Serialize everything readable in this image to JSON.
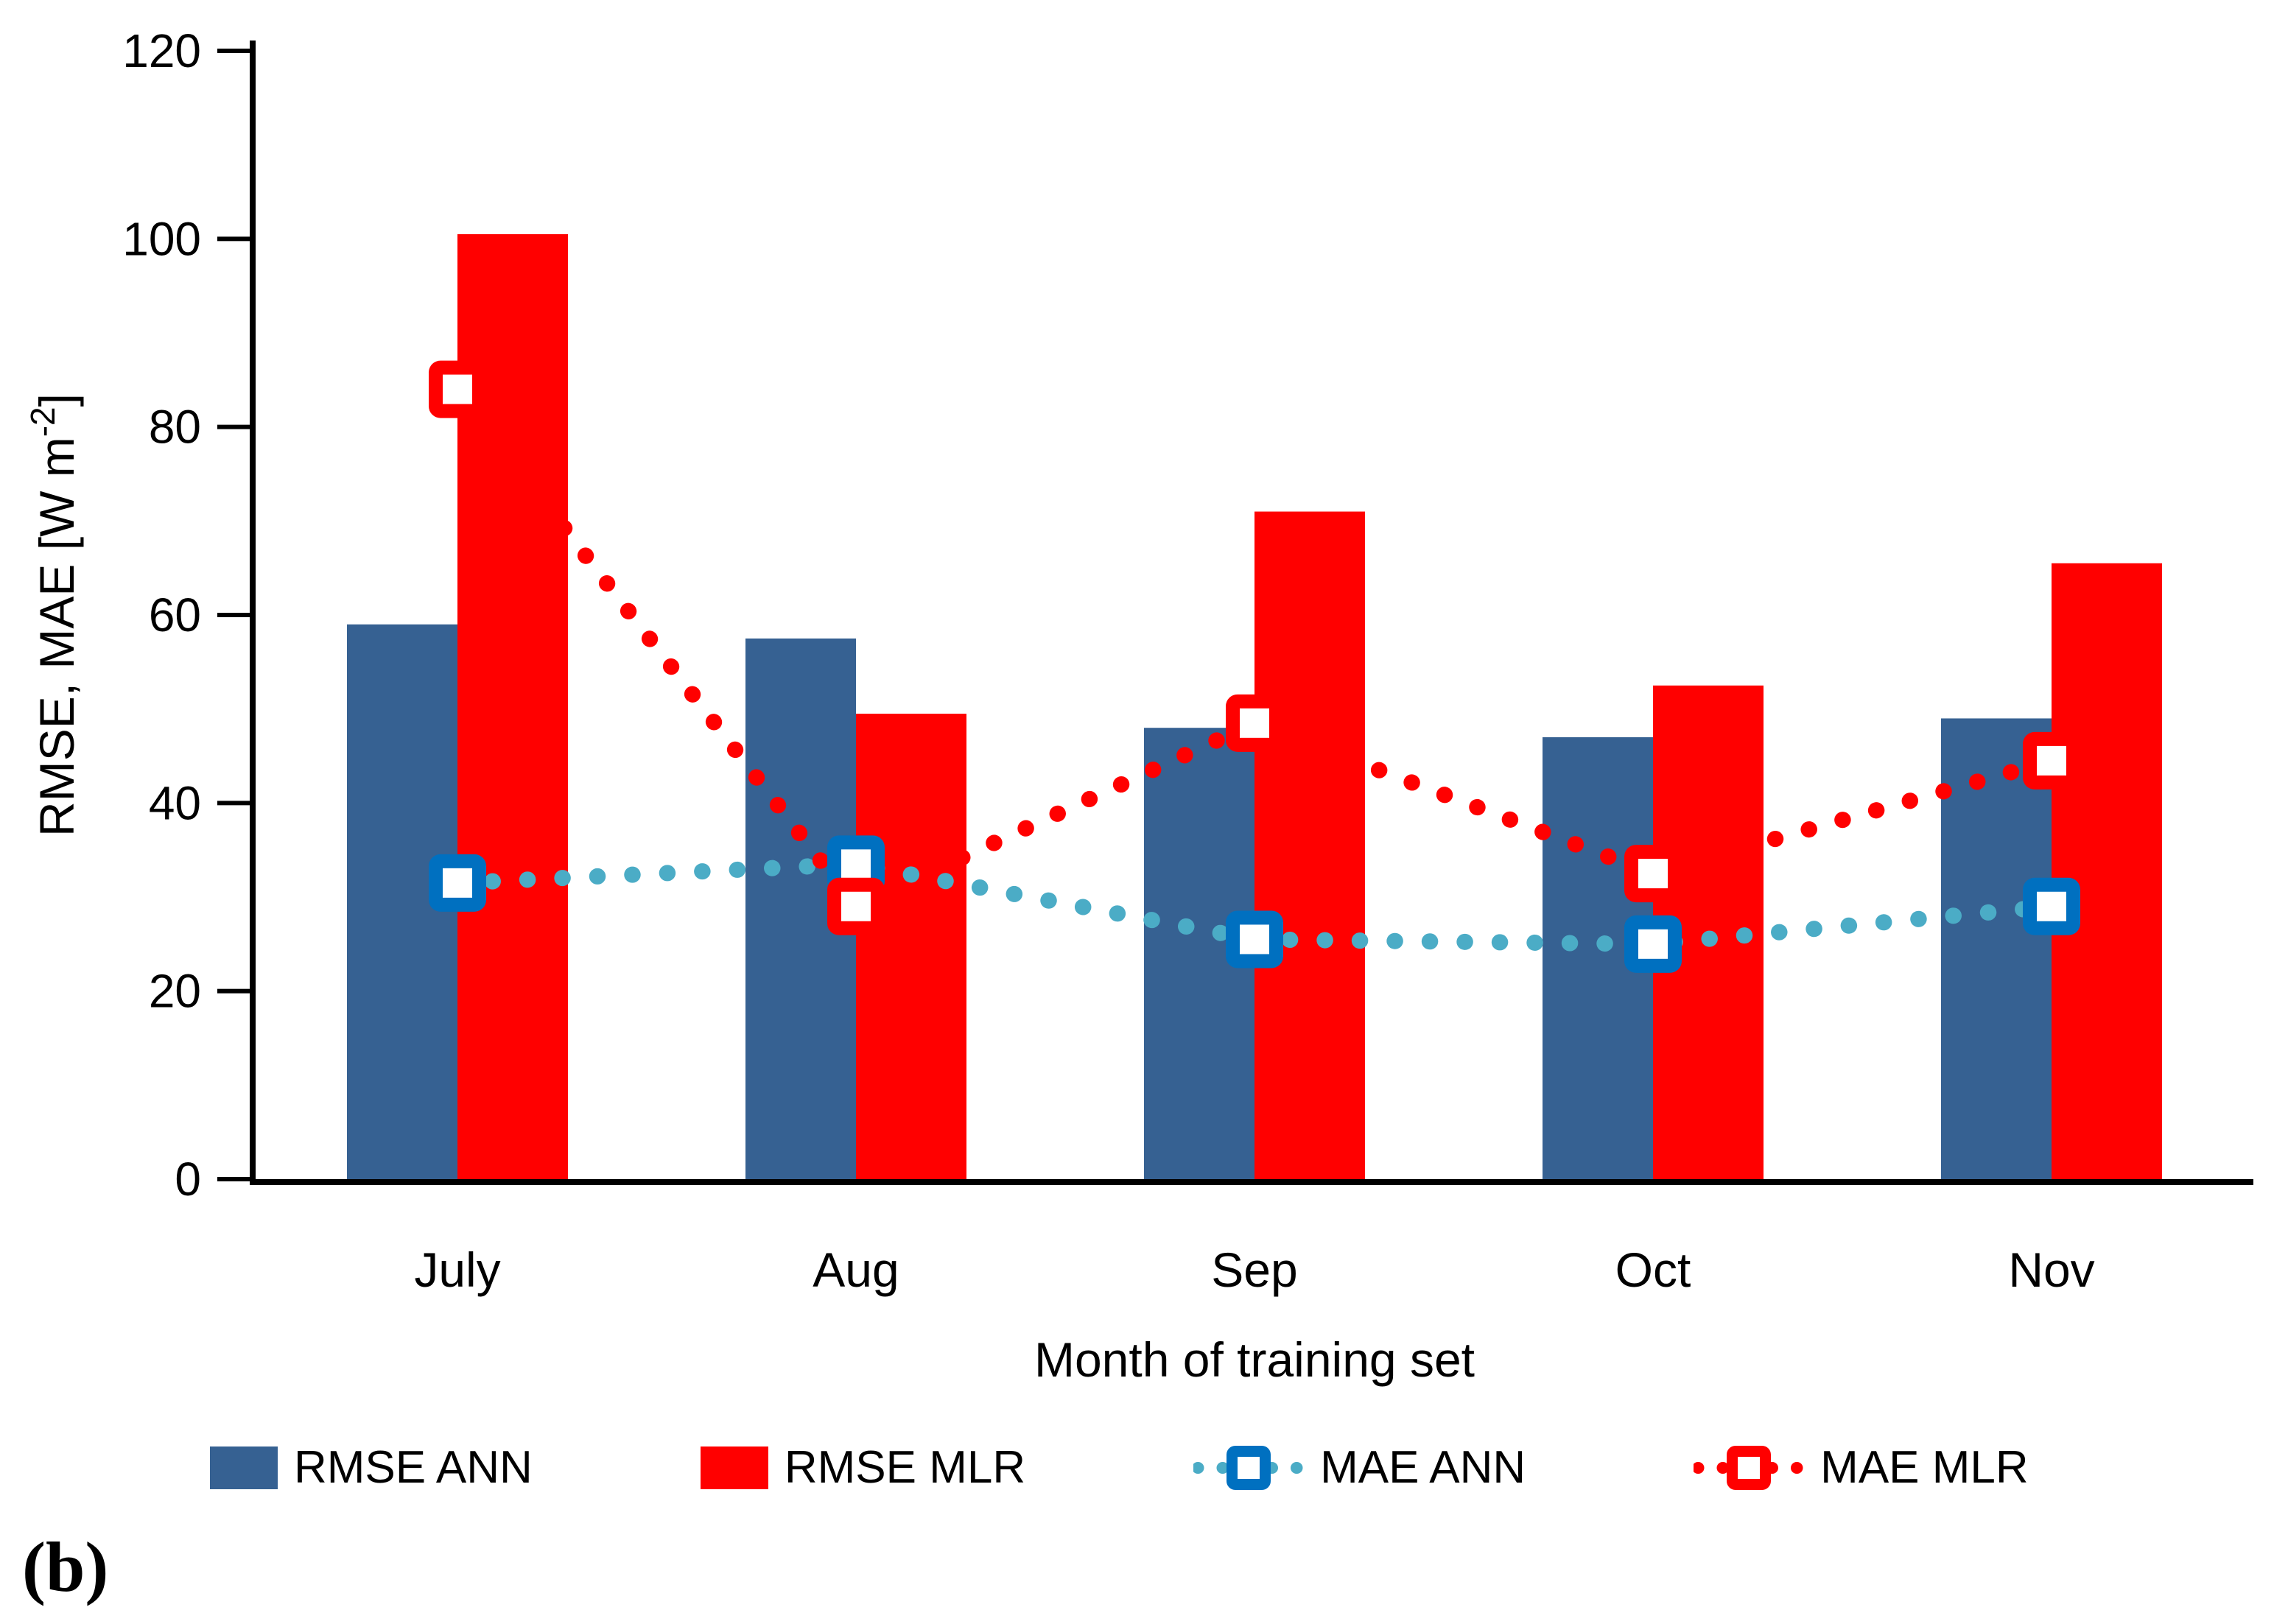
{
  "figure_label": "(b)",
  "chart_data": {
    "type": "combo-bar-line",
    "categories": [
      "July",
      "Aug",
      "Sep",
      "Oct",
      "Nov"
    ],
    "series": [
      {
        "name": "RMSE ANN",
        "type": "bar",
        "color": "#366192",
        "values": [
          59,
          57.5,
          48,
          47,
          49
        ]
      },
      {
        "name": "RMSE MLR",
        "type": "bar",
        "color": "#FF0000",
        "values": [
          100.5,
          49.5,
          71,
          52.5,
          65.5
        ]
      },
      {
        "name": "MAE ANN",
        "type": "dotted-line",
        "line_color": "#4BACC6",
        "marker_color": "#0070C0",
        "marker_fill": "#FFFFFF",
        "values": [
          31.5,
          33.5,
          25.5,
          25,
          29
        ]
      },
      {
        "name": "MAE MLR",
        "type": "dotted-line",
        "line_color": "#FF0000",
        "marker_color": "#FF0000",
        "marker_fill": "#FFFFFF",
        "values": [
          84,
          29,
          48.5,
          32.5,
          44.5
        ]
      }
    ],
    "xlabel": "Month of training set",
    "ylabel": "RMSE, MAE [W m⁻²]",
    "ylabel_parts": {
      "main": "RMSE, MAE [W m",
      "sup": "-2",
      "end": "]"
    },
    "ylim": [
      0,
      120
    ],
    "yticks": [
      0,
      20,
      40,
      60,
      80,
      100,
      120
    ],
    "legend_position": "bottom",
    "grid": false,
    "axis_color": "#000000",
    "background_color": "#FFFFFF"
  }
}
